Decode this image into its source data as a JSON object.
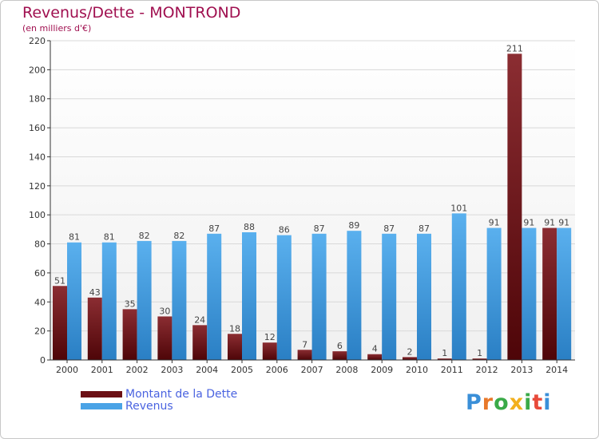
{
  "title": "Revenus/Dette - MONTROND",
  "subtitle": "(en milliers d'€)",
  "logo_text": "Proxiti",
  "colors": {
    "dette": "#7a1f24",
    "revenus": "#4aa3e6",
    "title": "#a01050",
    "legend_text": "#4a63e0"
  },
  "legend": [
    {
      "label": "Montant de la Dette",
      "color": "#6b0f14"
    },
    {
      "label": "Revenus",
      "color": "#4aa3e6"
    }
  ],
  "chart_data": {
    "type": "bar",
    "title": "Revenus/Dette - MONTROND",
    "ylabel": "(en milliers d'€)",
    "xlabel": "",
    "categories": [
      "2000",
      "2001",
      "2002",
      "2003",
      "2004",
      "2005",
      "2006",
      "2007",
      "2008",
      "2009",
      "2010",
      "2011",
      "2012",
      "2013",
      "2014"
    ],
    "series": [
      {
        "name": "Montant de la Dette",
        "values": [
          51,
          43,
          35,
          30,
          24,
          18,
          12,
          7,
          6,
          4,
          2,
          1,
          1,
          211,
          91
        ]
      },
      {
        "name": "Revenus",
        "values": [
          81,
          81,
          82,
          82,
          87,
          88,
          86,
          87,
          89,
          87,
          87,
          101,
          91,
          91,
          91
        ]
      }
    ],
    "ylim": [
      0,
      220
    ],
    "yticks": [
      0,
      20,
      40,
      60,
      80,
      100,
      120,
      140,
      160,
      180,
      200,
      220
    ],
    "grid": true,
    "legend_position": "bottom-left"
  }
}
